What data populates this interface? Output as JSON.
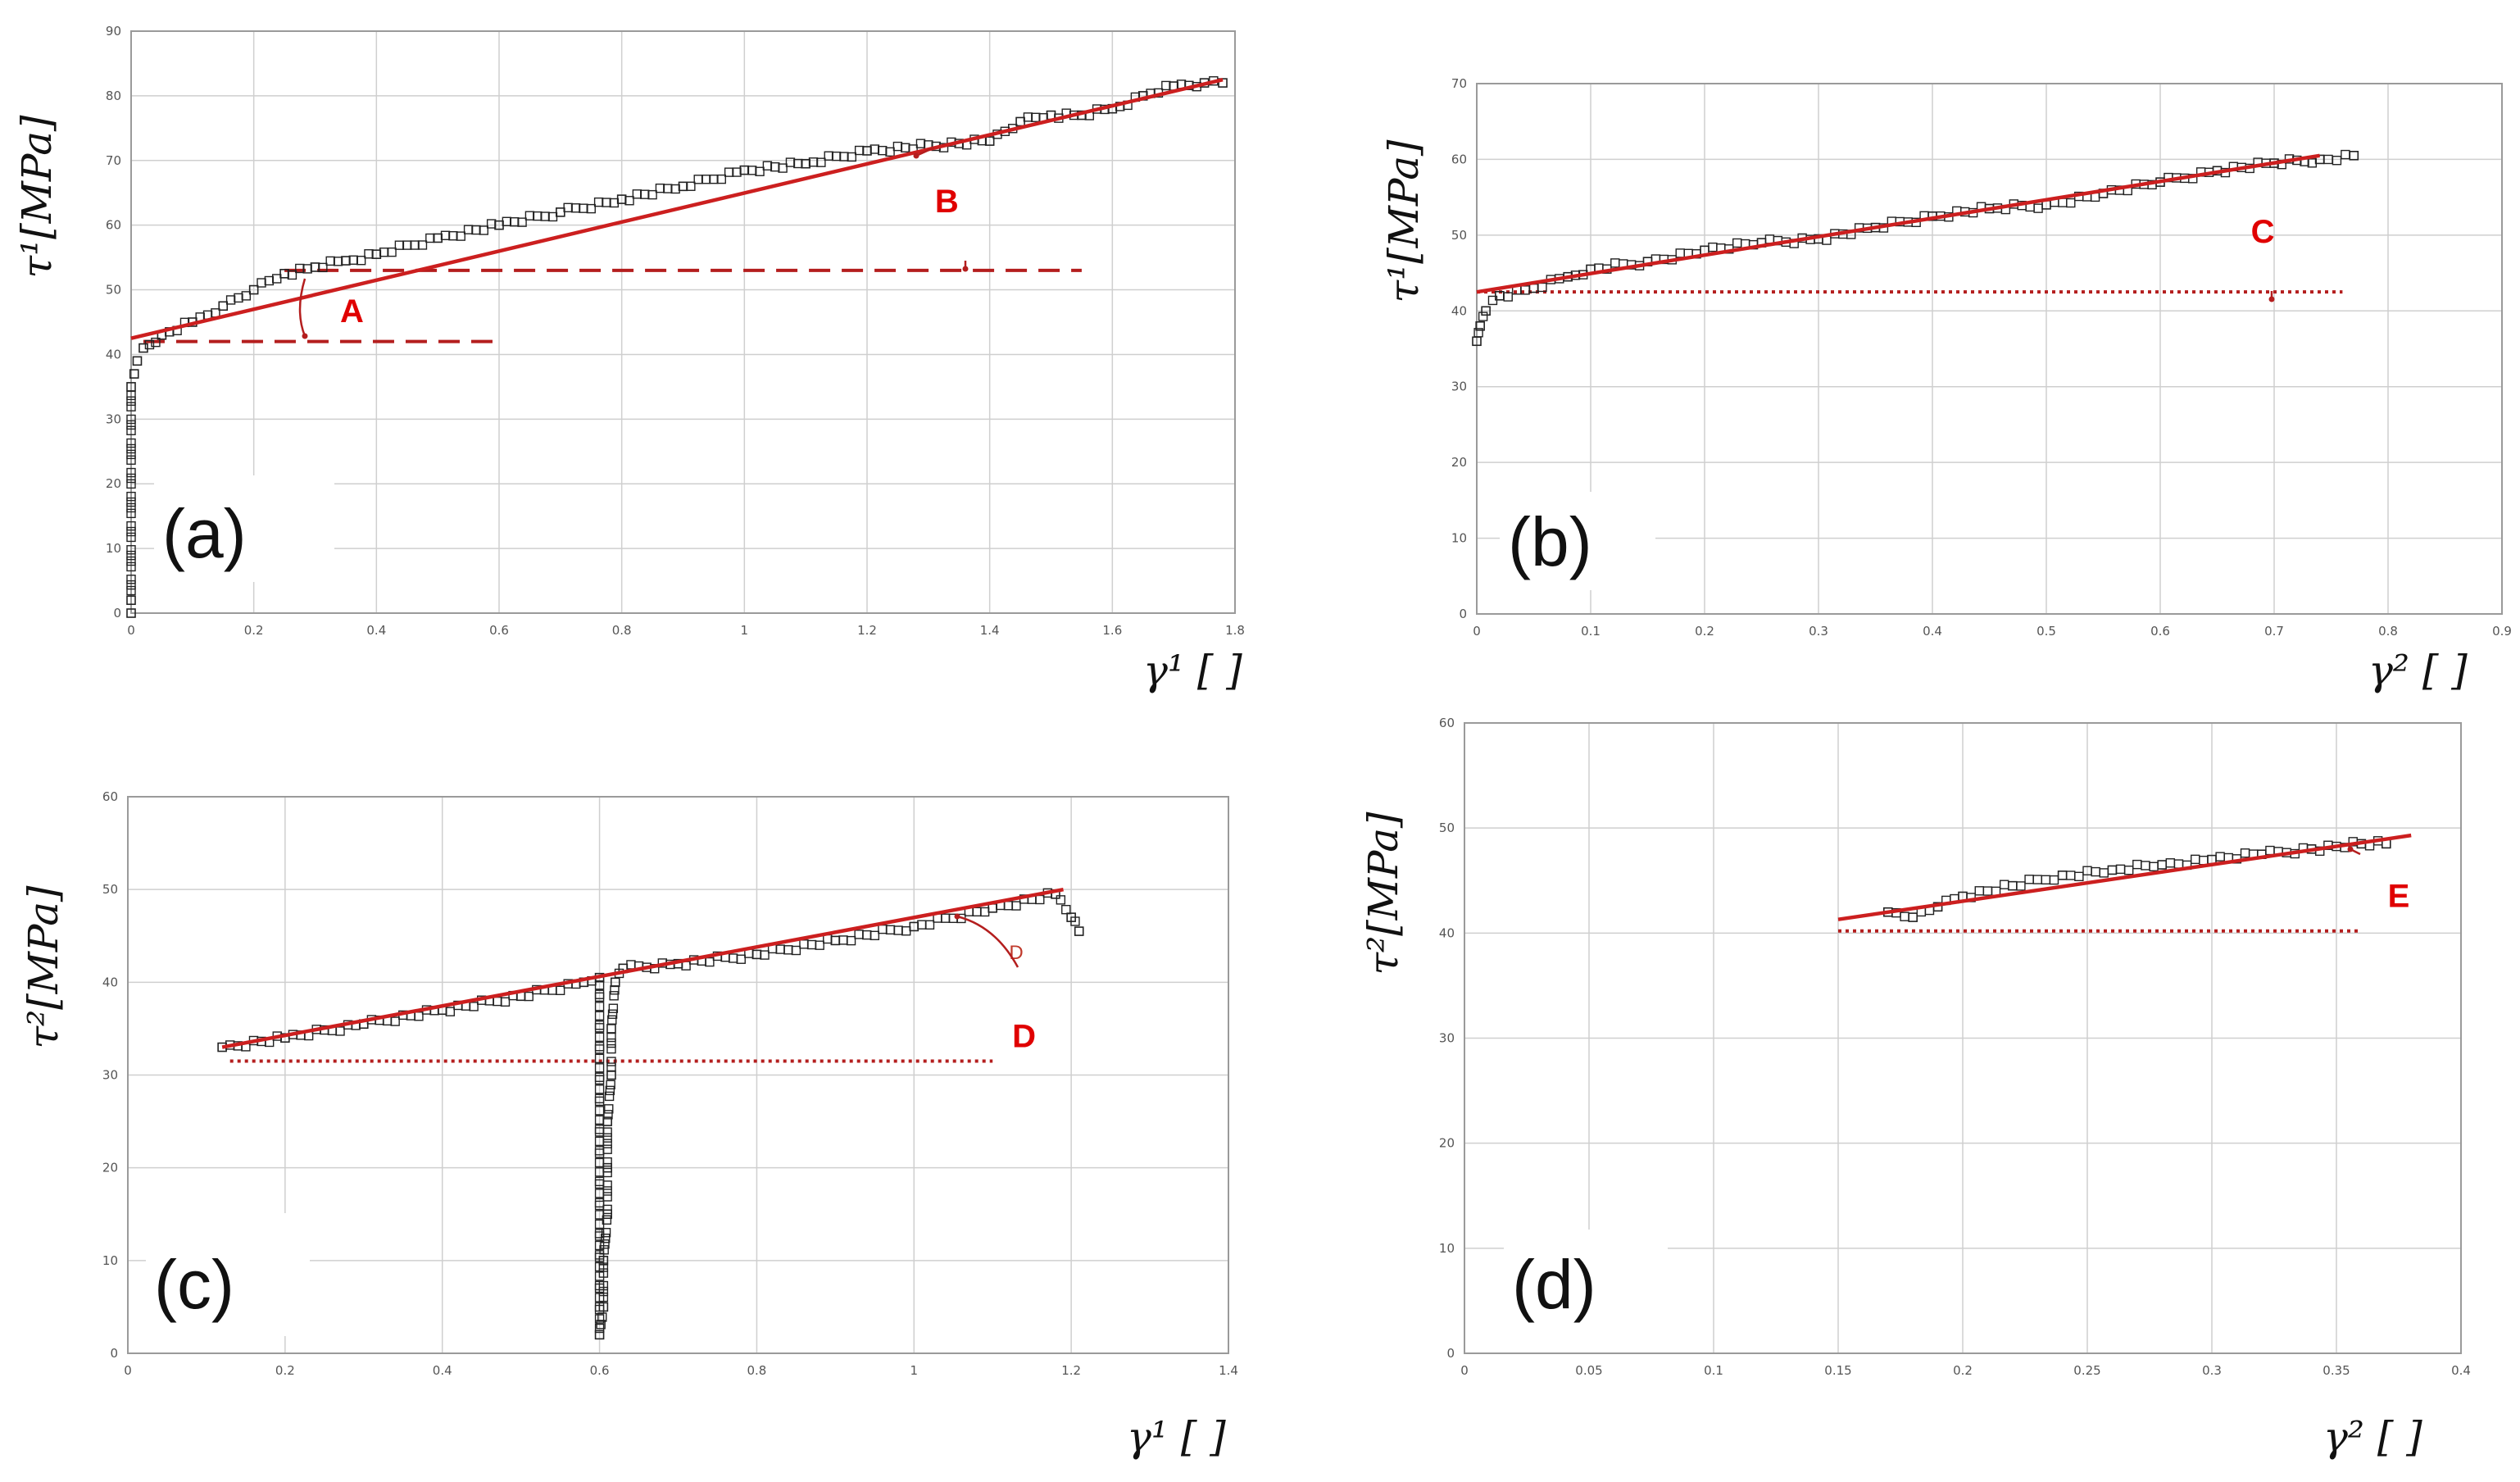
{
  "colors": {
    "fit": "#cc1f1f",
    "reference": "#b41e1e",
    "annotation": "#e00000",
    "grid": "#cfcfcf",
    "marker": "#222222"
  },
  "chart_data": [
    {
      "panel": "(a)",
      "type": "scatter",
      "ylabel": "τ¹[MPa]",
      "xlabel": "γ¹ [ ]",
      "xlim": [
        0,
        1.8
      ],
      "ylim": [
        0,
        90
      ],
      "xticks": [
        "0",
        "0.2",
        "0.4",
        "0.6",
        "0.8",
        "1",
        "1.2",
        "1.4",
        "1.6",
        "1.8"
      ],
      "yticks": [
        "0",
        "10",
        "20",
        "30",
        "40",
        "50",
        "60",
        "70",
        "80",
        "90"
      ],
      "series": [
        {
          "name": "measured",
          "points": [
            [
              0,
              0
            ],
            [
              0,
              2
            ],
            [
              0,
              35
            ],
            [
              0.005,
              37
            ],
            [
              0.01,
              39
            ],
            [
              0.02,
              41
            ],
            [
              0.05,
              43
            ],
            [
              0.1,
              45
            ],
            [
              0.15,
              47.5
            ],
            [
              0.2,
              50
            ],
            [
              0.25,
              52.5
            ],
            [
              0.3,
              53.5
            ],
            [
              0.35,
              54.5
            ],
            [
              0.4,
              55.5
            ],
            [
              0.5,
              58
            ],
            [
              0.6,
              60
            ],
            [
              0.7,
              62
            ],
            [
              0.8,
              64
            ],
            [
              0.9,
              66
            ],
            [
              1.0,
              68.5
            ],
            [
              1.1,
              69.5
            ],
            [
              1.2,
              71.5
            ],
            [
              1.4,
              73
            ],
            [
              1.45,
              76
            ],
            [
              1.5,
              77
            ],
            [
              1.55,
              77
            ],
            [
              1.6,
              78
            ],
            [
              1.65,
              80
            ],
            [
              1.7,
              81.5
            ],
            [
              1.75,
              82
            ],
            [
              1.78,
              82
            ]
          ]
        },
        {
          "name": "linear fit",
          "line": [
            [
              0,
              42.5
            ],
            [
              1.78,
              82.5
            ]
          ]
        }
      ],
      "reference_lines": [
        {
          "y": 42,
          "x": [
            0.02,
            0.6
          ],
          "style": "dashed"
        },
        {
          "y": 53,
          "x": [
            0.25,
            1.55
          ],
          "style": "dashed"
        }
      ],
      "annotations": [
        {
          "text": "A",
          "x": 0.36,
          "y": 45
        },
        {
          "text": "B",
          "x": 1.33,
          "y": 62
        }
      ]
    },
    {
      "panel": "(b)",
      "type": "scatter",
      "ylabel": "τ¹[MPa]",
      "xlabel": "γ² [ ]",
      "xlim": [
        0,
        0.9
      ],
      "ylim": [
        0,
        70
      ],
      "xticks": [
        "0",
        "0.1",
        "0.2",
        "0.3",
        "0.4",
        "0.5",
        "0.6",
        "0.7",
        "0.8",
        "0.9"
      ],
      "yticks": [
        "0",
        "10",
        "20",
        "30",
        "40",
        "50",
        "60",
        "70"
      ],
      "series": [
        {
          "name": "measured",
          "points": [
            [
              0,
              36
            ],
            [
              0.003,
              38
            ],
            [
              0.008,
              40
            ],
            [
              0.02,
              42
            ],
            [
              0.05,
              43
            ],
            [
              0.08,
              44.5
            ],
            [
              0.1,
              45.5
            ],
            [
              0.15,
              46.5
            ],
            [
              0.2,
              48
            ],
            [
              0.25,
              49
            ],
            [
              0.3,
              49.5
            ],
            [
              0.35,
              51
            ],
            [
              0.4,
              52.5
            ],
            [
              0.45,
              53.5
            ],
            [
              0.5,
              54
            ],
            [
              0.55,
              55.5
            ],
            [
              0.6,
              57
            ],
            [
              0.65,
              58.5
            ],
            [
              0.7,
              59.5
            ],
            [
              0.74,
              60
            ],
            [
              0.77,
              60.5
            ]
          ]
        },
        {
          "name": "linear fit",
          "line": [
            [
              0,
              42.5
            ],
            [
              0.74,
              60.5
            ]
          ]
        }
      ],
      "reference_lines": [
        {
          "y": 42.5,
          "x": [
            0,
            0.76
          ],
          "style": "dotted"
        }
      ],
      "annotations": [
        {
          "text": "C",
          "x": 0.69,
          "y": 49
        }
      ]
    },
    {
      "panel": "(c)",
      "type": "scatter",
      "ylabel": "τ²[MPa]",
      "xlabel": "γ¹ [ ]",
      "xlim": [
        0,
        1.4
      ],
      "ylim": [
        0,
        60
      ],
      "xticks": [
        "0",
        "0.2",
        "0.4",
        "0.6",
        "0.8",
        "1",
        "1.2",
        "1.4"
      ],
      "yticks": [
        "0",
        "10",
        "20",
        "30",
        "40",
        "50",
        "60"
      ],
      "series": [
        {
          "name": "measured",
          "points": [
            [
              0.12,
              33
            ],
            [
              0.2,
              34
            ],
            [
              0.3,
              35.5
            ],
            [
              0.4,
              37
            ],
            [
              0.5,
              38.5
            ],
            [
              0.58,
              40
            ],
            [
              0.6,
              40.5
            ],
            [
              0.6,
              2
            ],
            [
              0.605,
              5
            ],
            [
              0.605,
              10
            ],
            [
              0.61,
              15
            ],
            [
              0.61,
              20
            ],
            [
              0.61,
              25
            ],
            [
              0.615,
              30
            ],
            [
              0.615,
              35
            ],
            [
              0.62,
              40
            ],
            [
              0.63,
              41.5
            ],
            [
              0.7,
              42
            ],
            [
              0.8,
              43
            ],
            [
              0.9,
              44.5
            ],
            [
              1.0,
              46
            ],
            [
              1.1,
              48
            ],
            [
              1.18,
              49.5
            ],
            [
              1.2,
              47
            ],
            [
              1.21,
              45.5
            ]
          ]
        },
        {
          "name": "linear fit",
          "line": [
            [
              0.12,
              33
            ],
            [
              1.19,
              50
            ]
          ]
        }
      ],
      "reference_lines": [
        {
          "y": 31.5,
          "x": [
            0.13,
            1.1
          ],
          "style": "dotted"
        }
      ],
      "annotations": [
        {
          "text": "D",
          "x": 1.14,
          "y": 33
        },
        {
          "text": "D",
          "x": 1.13,
          "y": 42.5,
          "small": true
        }
      ]
    },
    {
      "panel": "(d)",
      "type": "scatter",
      "ylabel": "τ²[MPa]",
      "xlabel": "γ² [ ]",
      "xlim": [
        0,
        0.4
      ],
      "ylim": [
        0,
        60
      ],
      "xticks": [
        "0",
        "0.05",
        "0.1",
        "0.15",
        "0.2",
        "0.25",
        "0.3",
        "0.35",
        "0.4"
      ],
      "yticks": [
        "0",
        "10",
        "20",
        "30",
        "40",
        "50",
        "60"
      ],
      "series": [
        {
          "name": "measured",
          "points": [
            [
              0.17,
              42
            ],
            [
              0.18,
              41.5
            ],
            [
              0.19,
              42.5
            ],
            [
              0.2,
              43.5
            ],
            [
              0.22,
              44.5
            ],
            [
              0.24,
              45.5
            ],
            [
              0.26,
              46
            ],
            [
              0.28,
              46.5
            ],
            [
              0.3,
              47
            ],
            [
              0.32,
              47.5
            ],
            [
              0.34,
              48
            ],
            [
              0.36,
              48.5
            ],
            [
              0.37,
              48.5
            ]
          ]
        },
        {
          "name": "linear fit",
          "line": [
            [
              0.15,
              41.3
            ],
            [
              0.38,
              49.3
            ]
          ]
        }
      ],
      "reference_lines": [
        {
          "y": 40.2,
          "x": [
            0.15,
            0.36
          ],
          "style": "dotted"
        }
      ],
      "annotations": [
        {
          "text": "E",
          "x": 0.375,
          "y": 42.5
        }
      ]
    }
  ]
}
